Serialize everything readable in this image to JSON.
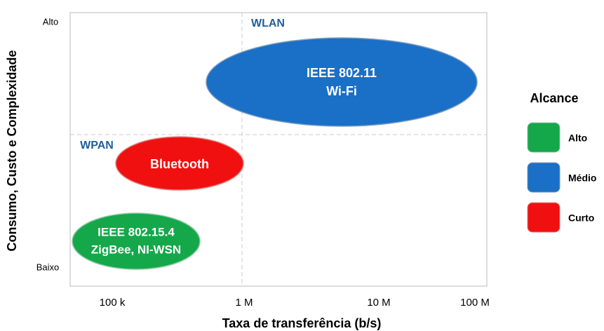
{
  "axes": {
    "x_title": "Taxa de transferência (b/s)",
    "x_labels": [
      "100 k",
      "1 M",
      "10 M",
      "100 M"
    ],
    "y_title": "Consumo, Custo e Complexidade",
    "y_labels": [
      "Alto",
      "Baixo"
    ]
  },
  "regions": [
    "WLAN",
    "WPAN"
  ],
  "nodes": [
    {
      "lines": [
        "IEEE 802.11",
        "Wi-Fi"
      ]
    },
    {
      "lines": [
        "Bluetooth"
      ]
    },
    {
      "lines": [
        "IEEE 802.15.4",
        "ZigBee, NI-WSN"
      ]
    }
  ],
  "legend": {
    "title": "Alcance",
    "items": [
      "Alto",
      "Médio",
      "Curto"
    ]
  }
}
